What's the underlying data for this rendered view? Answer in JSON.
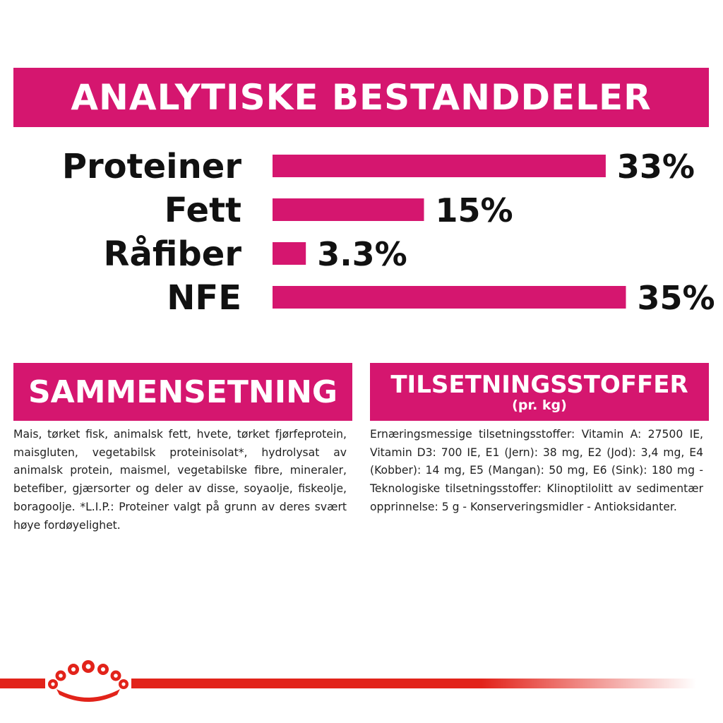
{
  "header": {
    "title": "ANALYTISKE BESTANDDELER"
  },
  "chart_data": {
    "type": "bar",
    "orientation": "horizontal",
    "categories": [
      "Proteiner",
      "Fett",
      "Råfiber",
      "NFE"
    ],
    "values": [
      33,
      15,
      3.3,
      35
    ],
    "value_labels": [
      "33%",
      "15%",
      "3.3%",
      "35%"
    ],
    "unit": "%",
    "bar_color": "#d5166f",
    "grid": false,
    "legend": "none"
  },
  "composition": {
    "title": "SAMMENSETNING",
    "text": "Mais, tørket fisk, animalsk fett, hvete, tørket fjørfeprotein, maisgluten, vegetabilsk proteinisolat*, hydrolysat av animalsk protein, maismel, vegetabilske fibre, mineraler, betefiber, gjærsorter og deler av disse, soyaolje, fiskeolje, boragoolje. *L.I.P.: Proteiner valgt på grunn av deres svært høye fordøyelighet."
  },
  "additives": {
    "title": "TILSETNINGSSTOFFER",
    "subtitle": "(pr. kg)",
    "text": "Ernæringsmessige tilsetningsstoffer: Vitamin A: 27500 IE, Vitamin D3: 700 IE, E1 (Jern): 38 mg, E2 (Jod): 3,4 mg, E4 (Kobber): 14 mg, E5 (Mangan): 50 mg, E6 (Sink): 180 mg - Teknologiske tilsetningsstoffer: Klinoptilolitt av sedimentær opprinnelse: 5 g - Konserveringsmidler - Antioksidanter."
  },
  "colors": {
    "accent": "#d5166f",
    "brand_red": "#e2231a"
  },
  "icons": {
    "logo": "royal-canin-crown-icon"
  }
}
